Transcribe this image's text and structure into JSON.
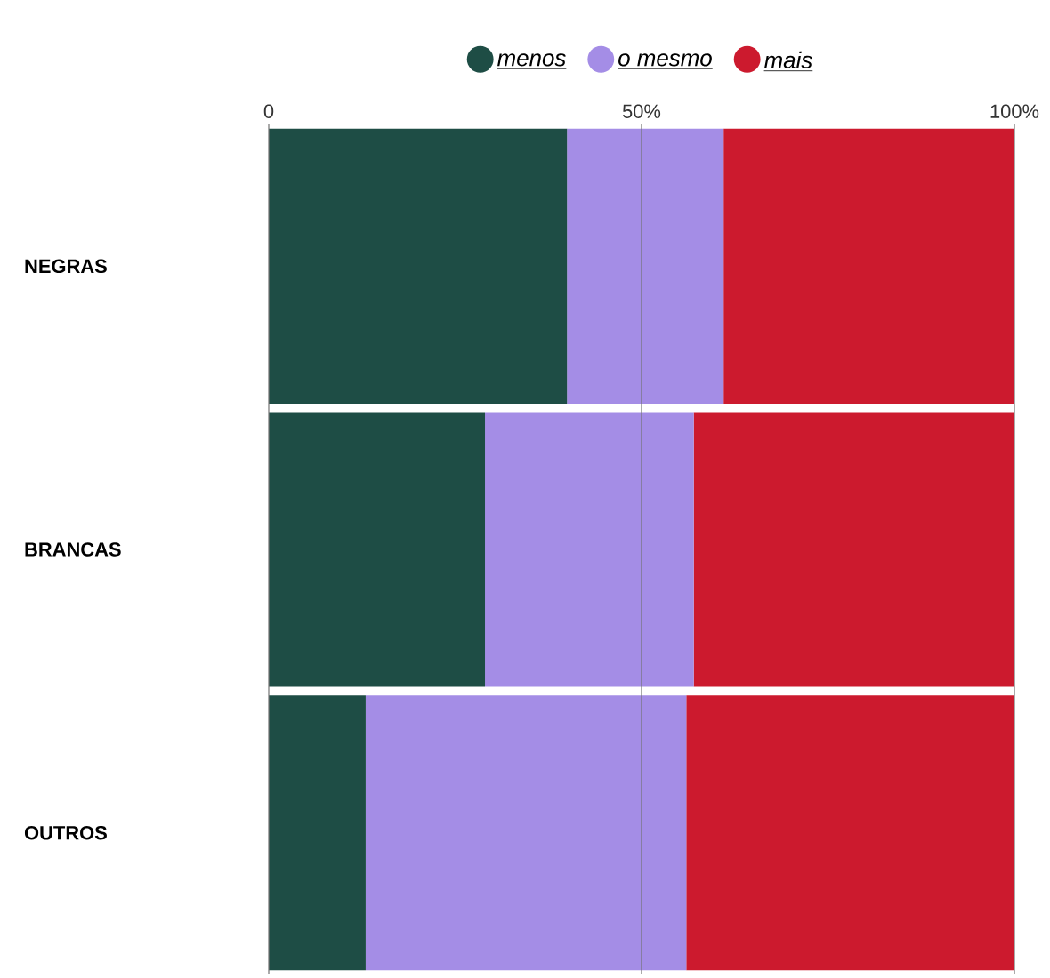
{
  "chart_data": {
    "type": "bar",
    "orientation": "horizontal",
    "stacked": true,
    "categories": [
      "NEGRAS",
      "BRANCAS",
      "OUTROS"
    ],
    "series": [
      {
        "name": "menos",
        "color": "#1e4d45",
        "values": [
          40,
          29,
          13
        ]
      },
      {
        "name": "o mesmo",
        "color": "#a48de6",
        "values": [
          21,
          28,
          43
        ]
      },
      {
        "name": "mais",
        "color": "#cc1a2e",
        "values": [
          39,
          43,
          44
        ]
      }
    ],
    "xlim": [
      0,
      100
    ],
    "xticks": [
      {
        "value": 0,
        "label": "0"
      },
      {
        "value": 50,
        "label": "50%"
      },
      {
        "value": 100,
        "label": "100%"
      }
    ],
    "grid": "x",
    "legend": "top"
  }
}
